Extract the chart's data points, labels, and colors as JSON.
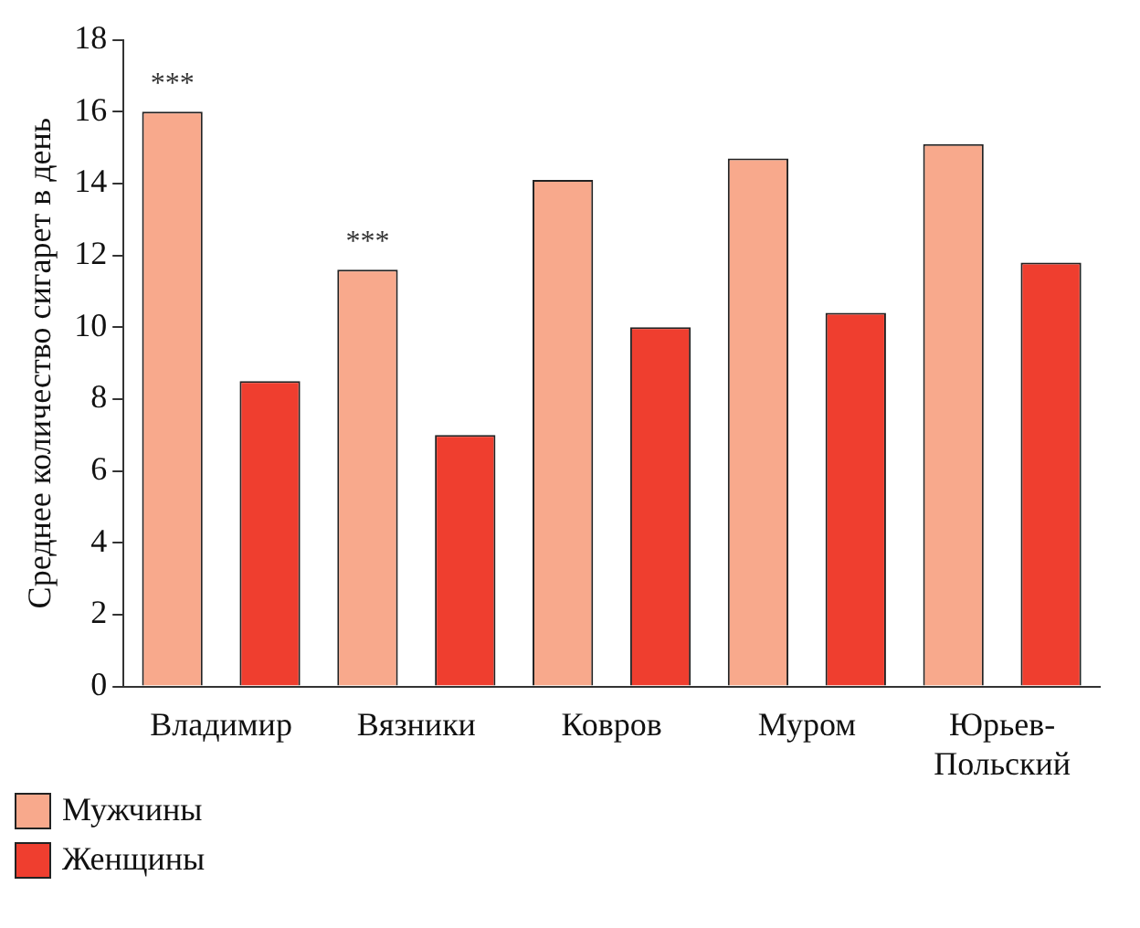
{
  "chart_data": {
    "type": "bar",
    "ylabel": "Среднее количество сигарет в день",
    "categories": [
      "Владимир",
      "Вязники",
      "Ковров",
      "Муром",
      "Юрьев-Польский"
    ],
    "series": [
      {
        "name": "Мужчины",
        "color": "#f8a98c",
        "values": [
          16.0,
          11.6,
          14.1,
          14.7,
          15.1
        ]
      },
      {
        "name": "Женщины",
        "color": "#ef3e2f",
        "values": [
          8.5,
          7.0,
          10.0,
          10.4,
          11.8
        ]
      }
    ],
    "ylim": [
      0,
      18
    ],
    "yticks": [
      0,
      2,
      4,
      6,
      8,
      10,
      12,
      14,
      16,
      18
    ],
    "grid": false,
    "legend": "bottom left",
    "annotations": [
      "***",
      "***"
    ]
  }
}
